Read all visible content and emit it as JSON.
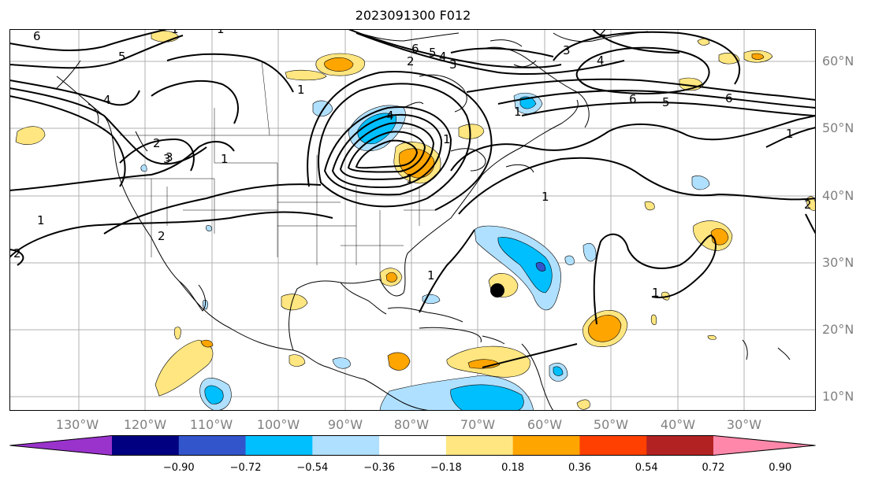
{
  "title": "2023091300 F012",
  "latitude_labels": [
    "60°N",
    "50°N",
    "40°N",
    "30°N",
    "20°N",
    "10°N"
  ],
  "longitude_labels": [
    "130°W",
    "120°W",
    "110°W",
    "100°W",
    "90°W",
    "80°W",
    "70°W",
    "60°W",
    "50°W",
    "40°W",
    "30°W"
  ],
  "colorbar": {
    "tick_labels": [
      "−0.90",
      "−0.72",
      "−0.54",
      "−0.36",
      "−0.18",
      "0.18",
      "0.36",
      "0.54",
      "0.72",
      "0.90"
    ],
    "colors": [
      "#9933cc",
      "#000080",
      "#3355cc",
      "#00bfff",
      "#b0e0ff",
      "#ffffff",
      "#ffe680",
      "#ffa500",
      "#ff4000",
      "#b22222",
      "#ff88aa"
    ]
  },
  "contour_labels": [
    "6",
    "5",
    "4",
    "3",
    "2",
    "1",
    "1",
    "2",
    "3",
    "1",
    "2",
    "1",
    "4",
    "6",
    "5",
    "4",
    "3",
    "2",
    "1",
    "1",
    "1",
    "3",
    "4",
    "6",
    "5",
    "6",
    "1",
    "1",
    "2",
    "1",
    "1",
    "2",
    "1"
  ],
  "storm_marker": "hurricane-center"
}
